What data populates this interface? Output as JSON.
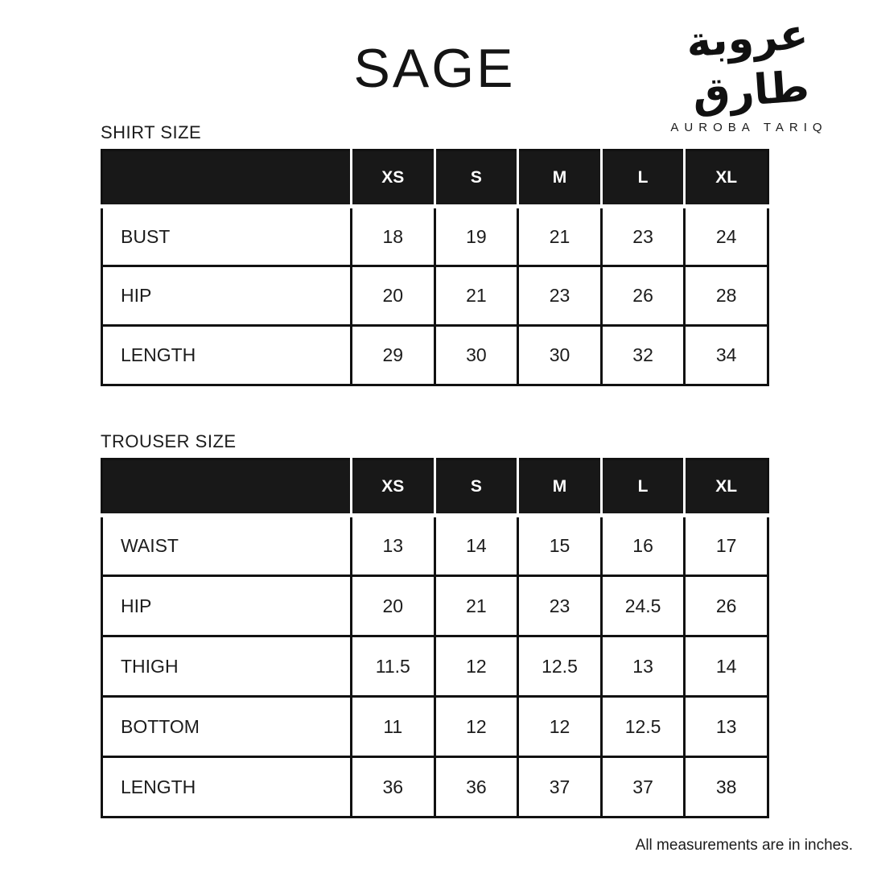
{
  "page": {
    "title": "SAGE",
    "footnote": "All measurements are in inches."
  },
  "brand": {
    "calligraphy": "عروبة طارق",
    "name": "AUROBA TARIQ"
  },
  "colors": {
    "header_bg": "#181818",
    "border": "#111111",
    "text": "#1c1c1c",
    "background": "#ffffff"
  },
  "tables": [
    {
      "label": "SHIRT SIZE",
      "columns": [
        "XS",
        "S",
        "M",
        "L",
        "XL"
      ],
      "rows": [
        {
          "label": "BUST",
          "values": [
            "18",
            "19",
            "21",
            "23",
            "24"
          ]
        },
        {
          "label": "HIP",
          "values": [
            "20",
            "21",
            "23",
            "26",
            "28"
          ]
        },
        {
          "label": "LENGTH",
          "values": [
            "29",
            "30",
            "30",
            "32",
            "34"
          ]
        }
      ]
    },
    {
      "label": "TROUSER SIZE",
      "columns": [
        "XS",
        "S",
        "M",
        "L",
        "XL"
      ],
      "rows": [
        {
          "label": "WAIST",
          "values": [
            "13",
            "14",
            "15",
            "16",
            "17"
          ]
        },
        {
          "label": "HIP",
          "values": [
            "20",
            "21",
            "23",
            "24.5",
            "26"
          ]
        },
        {
          "label": "THIGH",
          "values": [
            "11.5",
            "12",
            "12.5",
            "13",
            "14"
          ]
        },
        {
          "label": "BOTTOM",
          "values": [
            "11",
            "12",
            "12",
            "12.5",
            "13"
          ]
        },
        {
          "label": "LENGTH",
          "values": [
            "36",
            "36",
            "37",
            "37",
            "38"
          ]
        }
      ]
    }
  ]
}
